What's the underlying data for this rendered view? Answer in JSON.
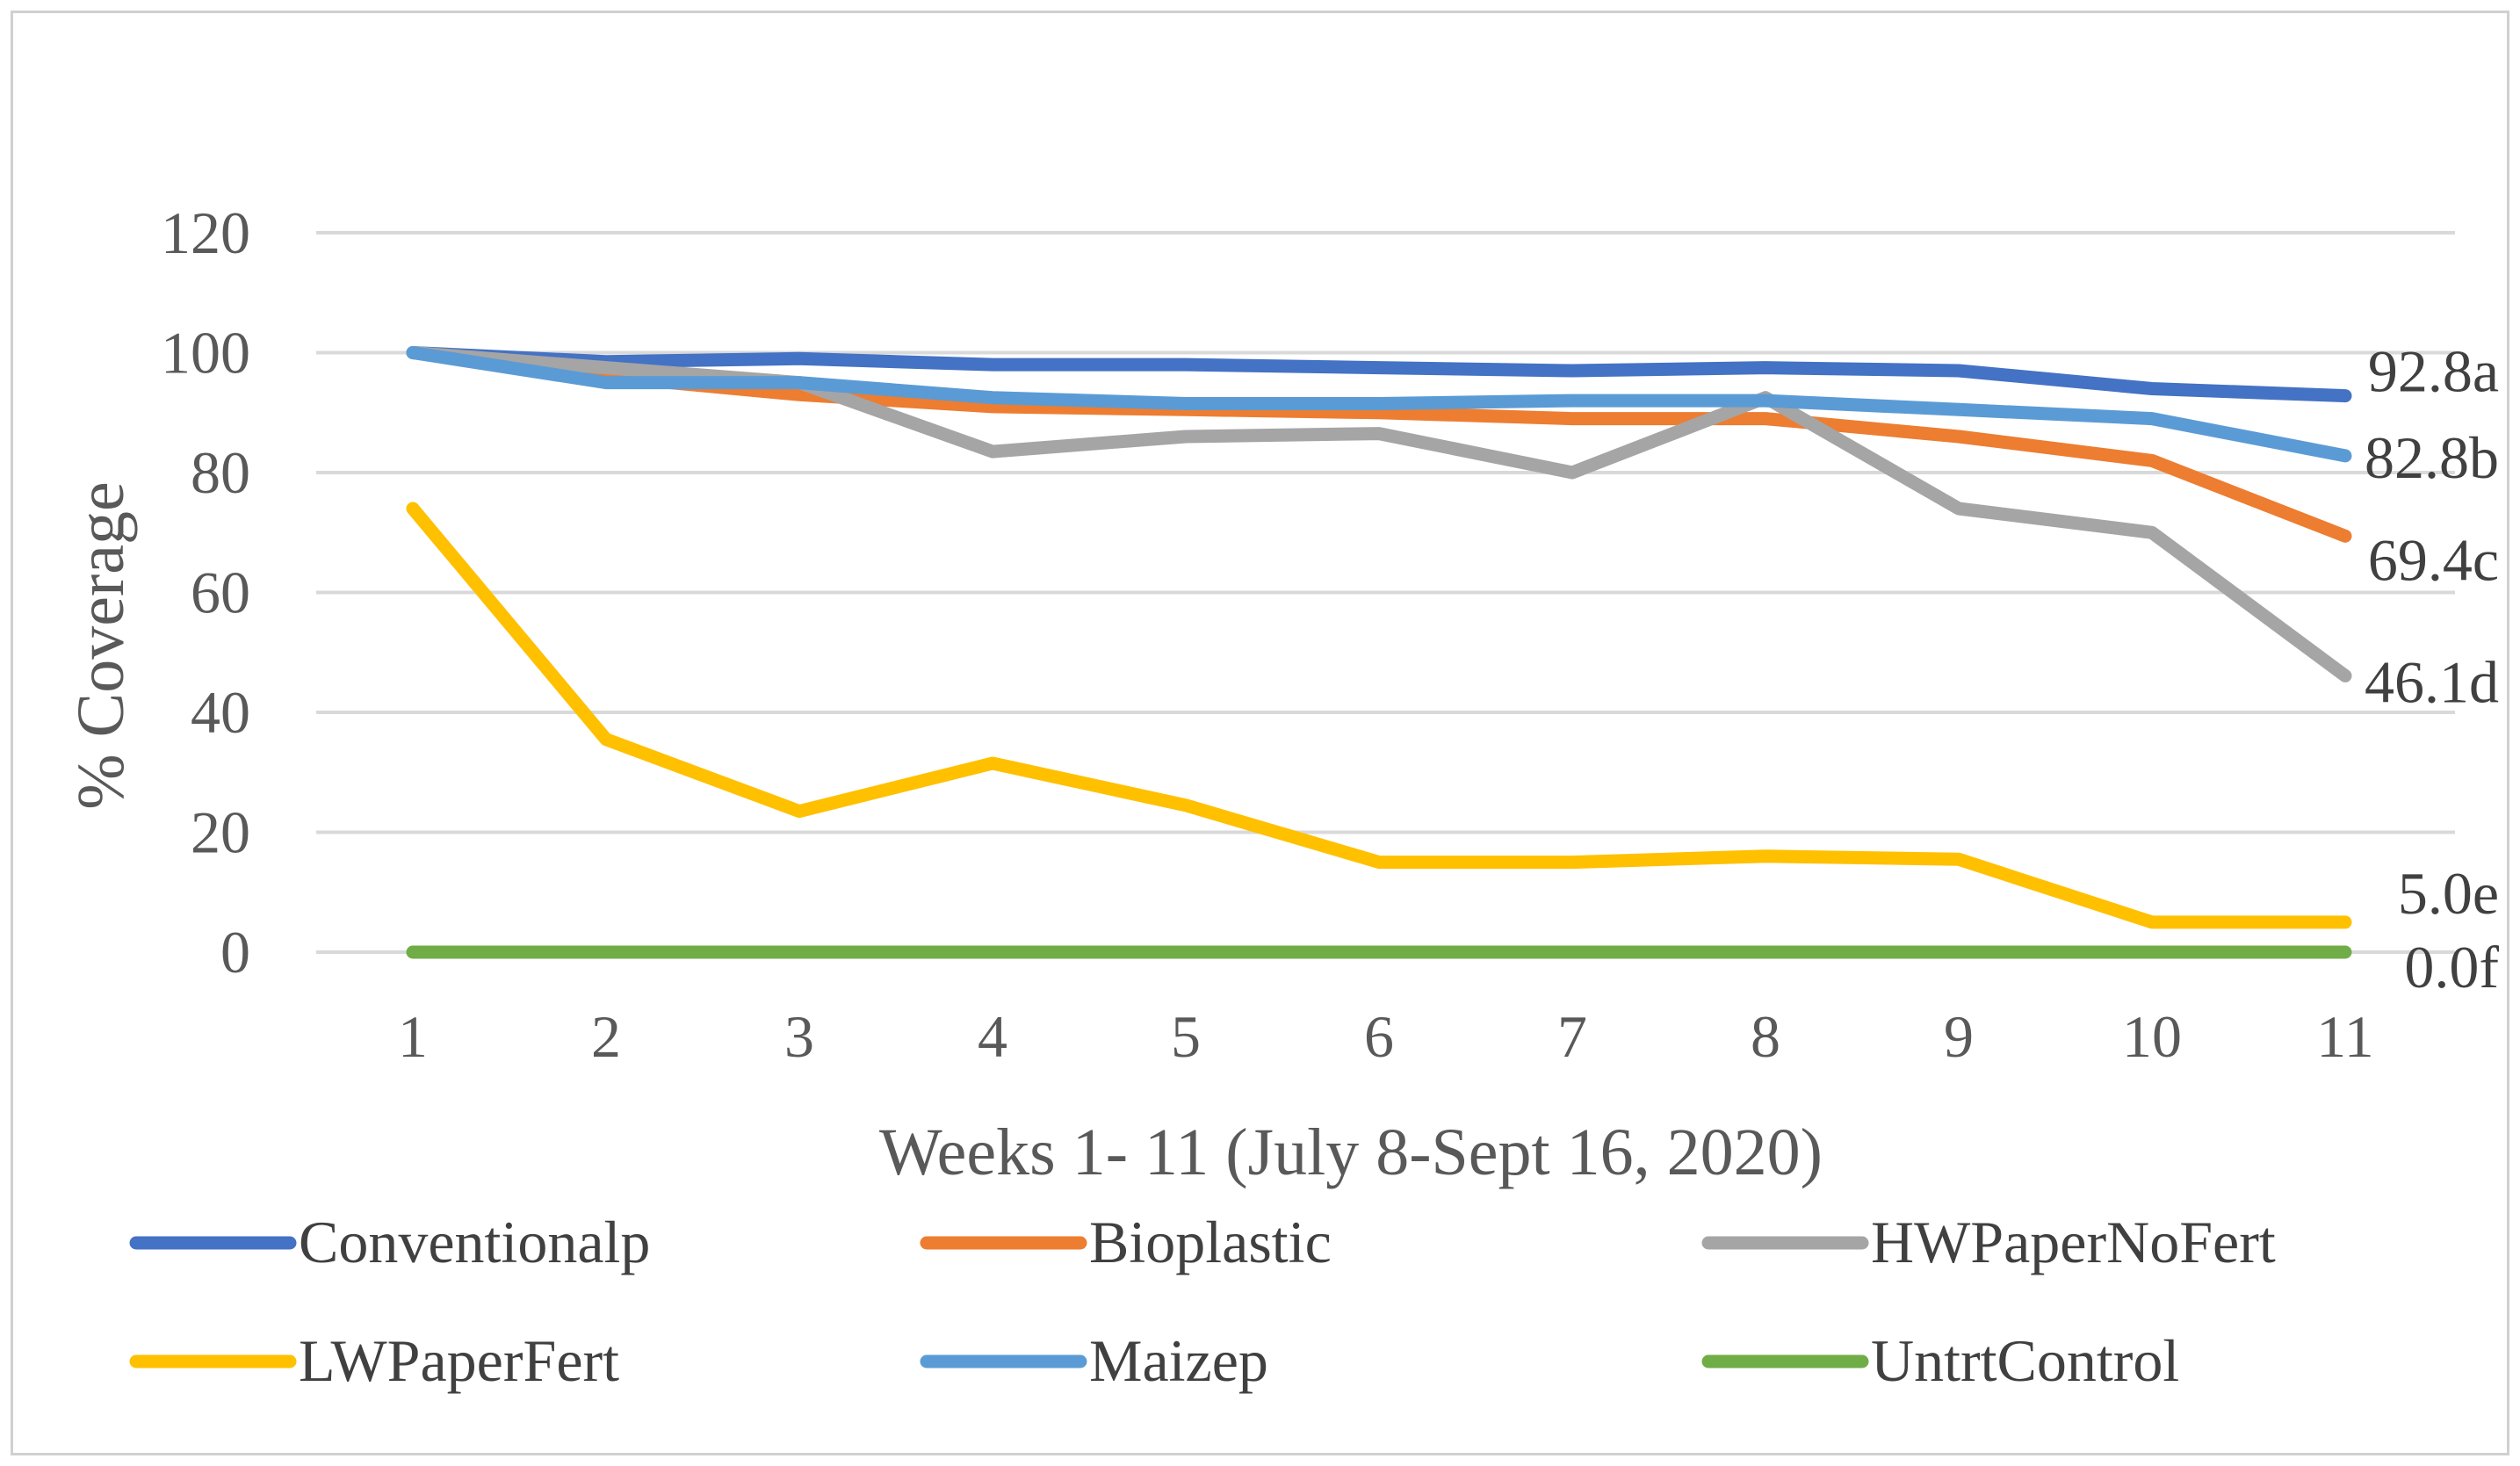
{
  "chart_data": {
    "type": "line",
    "title": "",
    "xlabel": "Weeks 1- 11 (July 8-Sept 16, 2020)",
    "ylabel": "% Coverage",
    "categories": [
      "1",
      "2",
      "3",
      "4",
      "5",
      "6",
      "7",
      "8",
      "9",
      "10",
      "11"
    ],
    "ylim": [
      0,
      120
    ],
    "yticks": [
      0,
      20,
      40,
      60,
      80,
      100,
      120
    ],
    "grid": true,
    "legend_position": "bottom",
    "series": [
      {
        "name": "Conventionalp",
        "color": "#4472c4",
        "values": [
          100,
          98.5,
          99,
          98,
          98,
          97.5,
          97,
          97.5,
          97,
          94,
          92.8
        ],
        "end_label": "92.8a"
      },
      {
        "name": "Bioplastic",
        "color": "#ed7d31",
        "values": [
          100,
          96,
          93,
          91,
          90.5,
          90,
          89,
          89,
          86,
          82,
          69.4
        ],
        "end_label": "69.4c"
      },
      {
        "name": "HWPaperNoFert",
        "color": "#a5a5a5",
        "values": [
          100,
          97.5,
          95,
          83.5,
          86,
          86.5,
          80,
          92.5,
          74,
          70,
          46.1
        ],
        "end_label": "46.1d"
      },
      {
        "name": "LWPaperFert",
        "color": "#ffc000",
        "values": [
          74,
          35.5,
          23.5,
          31.5,
          24.5,
          15,
          15,
          16,
          15.5,
          5,
          5.0
        ],
        "end_label": "5.0e"
      },
      {
        "name": "Maizep",
        "color": "#5b9bd5",
        "values": [
          100,
          95,
          95,
          92.5,
          91.5,
          91.5,
          92,
          92,
          90.5,
          89,
          82.8
        ],
        "end_label": "82.8b"
      },
      {
        "name": "UntrtControl",
        "color": "#70ad47",
        "values": [
          0,
          0,
          0,
          0,
          0,
          0,
          0,
          0,
          0,
          0,
          0.0
        ],
        "end_label": "0.0f"
      }
    ]
  }
}
